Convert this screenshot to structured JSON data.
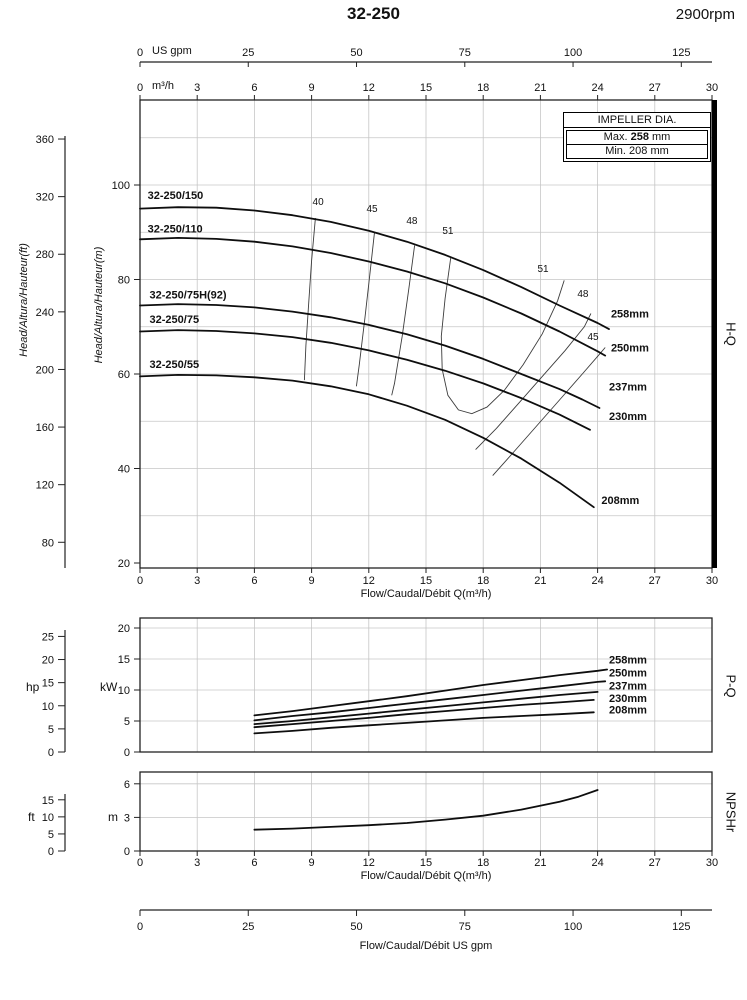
{
  "title": "32-250",
  "rpm": "2900rpm",
  "impeller_box": {
    "header": "IMPELLER DIA.",
    "max_label": "Max.",
    "max_value": "258",
    "max_unit": "mm",
    "min_label": "Min.",
    "min_value": "208",
    "min_unit": "mm"
  },
  "section_labels": {
    "hq": "H-Q",
    "pq": "P-Q",
    "npshr": "NPSHr"
  },
  "axis_titles": {
    "head_ft": "Head/Altura/Hauteur(ft)",
    "head_m": "Head/Altura/Hauteur(m)",
    "flow_m3h": "Flow/Caudal/Débit Q(m³/h)",
    "flow_usgpm": "Flow/Caudal/Débit  US gpm",
    "us_gpm_unit": "US gpm",
    "m3h_unit": "m³/h",
    "kw_unit": "kW",
    "hp_unit": "hp",
    "m_unit": "m",
    "ft_unit": "ft"
  },
  "chart_data": [
    {
      "id": "hq",
      "type": "line",
      "title": "H-Q",
      "xlabel": "Flow/Caudal/Débit Q(m³/h)",
      "ylabel": "Head/Altura/Hauteur(m)",
      "xlim_m3h": [
        0,
        30
      ],
      "ylim_m": [
        20,
        100
      ],
      "x_ticks_m3h": [
        0,
        3,
        6,
        9,
        12,
        15,
        18,
        21,
        24,
        27,
        30
      ],
      "x_ticks_usgpm": [
        0,
        25,
        50,
        75,
        100,
        125
      ],
      "y_ticks_m": [
        20,
        40,
        60,
        80,
        100
      ],
      "y_ticks_ft": [
        80,
        120,
        160,
        200,
        240,
        280,
        320,
        360
      ],
      "series": [
        {
          "name": "32-250/150",
          "diameter": "258mm",
          "name_label_at": [
            0.4,
            97
          ],
          "dia_label_at": [
            24.7,
            72
          ],
          "points": [
            [
              0,
              95
            ],
            [
              2,
              95.3
            ],
            [
              4,
              95.2
            ],
            [
              6,
              94.6
            ],
            [
              8,
              93.6
            ],
            [
              10,
              92.2
            ],
            [
              12,
              90.3
            ],
            [
              14,
              88
            ],
            [
              16,
              85.2
            ],
            [
              18,
              82
            ],
            [
              20,
              78.4
            ],
            [
              22,
              74.5
            ],
            [
              24,
              70.8
            ],
            [
              24.6,
              69.5
            ]
          ]
        },
        {
          "name": "32-250/110",
          "diameter": "250mm",
          "name_label_at": [
            0.4,
            90
          ],
          "dia_label_at": [
            24.7,
            64.8
          ],
          "points": [
            [
              0,
              88.5
            ],
            [
              2,
              88.8
            ],
            [
              4,
              88.6
            ],
            [
              6,
              88
            ],
            [
              8,
              87
            ],
            [
              10,
              85.6
            ],
            [
              12,
              83.8
            ],
            [
              14,
              81.7
            ],
            [
              16,
              79.2
            ],
            [
              18,
              76.2
            ],
            [
              20,
              72.8
            ],
            [
              22,
              69
            ],
            [
              24,
              64.8
            ],
            [
              24.4,
              63.9
            ]
          ]
        },
        {
          "name": "32-250/75H(92)",
          "diameter": "237mm",
          "name_label_at": [
            0.5,
            76
          ],
          "dia_label_at": [
            24.6,
            56.5
          ],
          "points": [
            [
              0,
              74.5
            ],
            [
              2,
              74.8
            ],
            [
              4,
              74.6
            ],
            [
              6,
              74.1
            ],
            [
              8,
              73.2
            ],
            [
              10,
              72
            ],
            [
              12,
              70.4
            ],
            [
              14,
              68.4
            ],
            [
              16,
              66
            ],
            [
              18,
              63.2
            ],
            [
              20,
              60
            ],
            [
              22,
              56.8
            ],
            [
              23.2,
              54.6
            ],
            [
              24.1,
              52.8
            ]
          ]
        },
        {
          "name": "32-250/75",
          "diameter": "230mm",
          "name_label_at": [
            0.5,
            70.8
          ],
          "dia_label_at": [
            24.6,
            50.3
          ],
          "points": [
            [
              0,
              69
            ],
            [
              2,
              69.3
            ],
            [
              4,
              69.1
            ],
            [
              6,
              68.6
            ],
            [
              8,
              67.8
            ],
            [
              10,
              66.6
            ],
            [
              12,
              65
            ],
            [
              14,
              63
            ],
            [
              16,
              60.7
            ],
            [
              18,
              58
            ],
            [
              20,
              54.9
            ],
            [
              22,
              51.4
            ],
            [
              23.6,
              48.2
            ]
          ]
        },
        {
          "name": "32-250/55",
          "diameter": "208mm",
          "name_label_at": [
            0.5,
            61.3
          ],
          "dia_label_at": [
            24.2,
            32.5
          ],
          "points": [
            [
              0,
              59.5
            ],
            [
              2,
              59.8
            ],
            [
              4,
              59.7
            ],
            [
              6,
              59.3
            ],
            [
              8,
              58.6
            ],
            [
              10,
              57.4
            ],
            [
              12,
              55.7
            ],
            [
              14,
              53.3
            ],
            [
              16,
              50.3
            ],
            [
              18,
              46.5
            ],
            [
              20,
              42.1
            ],
            [
              22,
              37
            ],
            [
              23.8,
              31.8
            ]
          ]
        }
      ],
      "efficiency_lines": [
        {
          "label": "40",
          "label_at": [
            9.34,
            95.8
          ],
          "points": [
            [
              9.2,
              93
            ],
            [
              9.0,
              84
            ],
            [
              8.85,
              75
            ],
            [
              8.7,
              66
            ],
            [
              8.62,
              58.7
            ]
          ]
        },
        {
          "label": "45",
          "label_at": [
            12.17,
            94.3
          ],
          "points": [
            [
              12.3,
              90
            ],
            [
              12.05,
              81
            ],
            [
              11.8,
              72
            ],
            [
              11.5,
              62
            ],
            [
              11.35,
              57.4
            ]
          ]
        },
        {
          "label": "48",
          "label_at": [
            14.26,
            91.7
          ],
          "points": [
            [
              14.4,
              87.2
            ],
            [
              14.1,
              78
            ],
            [
              13.75,
              68
            ],
            [
              13.35,
              58
            ],
            [
              13.2,
              55.5
            ]
          ]
        },
        {
          "label": "51",
          "label_at": [
            16.15,
            89.6
          ],
          "points": [
            [
              16.3,
              84.7
            ],
            [
              16.0,
              76
            ],
            [
              15.8,
              68
            ],
            [
              15.85,
              61
            ],
            [
              16.15,
              55.5
            ],
            [
              16.7,
              52.4
            ],
            [
              17.4,
              51.6
            ],
            [
              18.2,
              53
            ],
            [
              19.1,
              56.5
            ],
            [
              20.1,
              62
            ],
            [
              21.1,
              68.5
            ],
            [
              21.9,
              75.5
            ],
            [
              22.25,
              79.8
            ]
          ]
        },
        {
          "label": "51",
          "label_at": [
            21.14,
            81.6
          ],
          "points": []
        },
        {
          "label": "48",
          "label_at": [
            23.23,
            76.3
          ],
          "points": [
            [
              17.6,
              44
            ],
            [
              18.7,
              48.5
            ],
            [
              19.9,
              54
            ],
            [
              21.1,
              59.5
            ],
            [
              22.3,
              65
            ],
            [
              23.3,
              70
            ],
            [
              23.65,
              72.8
            ]
          ]
        },
        {
          "label": "45",
          "label_at": [
            23.76,
            67.2
          ],
          "points": [
            [
              18.5,
              38.5
            ],
            [
              19.6,
              43.5
            ],
            [
              20.8,
              49
            ],
            [
              22.0,
              54.5
            ],
            [
              23.2,
              60
            ],
            [
              24.1,
              64.2
            ],
            [
              24.4,
              65.6
            ]
          ]
        }
      ]
    },
    {
      "id": "pq",
      "type": "line",
      "title": "P-Q",
      "ylabel": "kW",
      "ylim_kw": [
        0,
        20
      ],
      "y_ticks_kw": [
        0,
        5,
        10,
        15,
        20
      ],
      "y_ticks_hp": [
        0,
        5,
        10,
        15,
        20,
        25
      ],
      "series": [
        {
          "diameter": "258mm",
          "dia_label_at": [
            24.6,
            14.3
          ],
          "points": [
            [
              6,
              5.9
            ],
            [
              8,
              6.6
            ],
            [
              10,
              7.4
            ],
            [
              12,
              8.2
            ],
            [
              14,
              9.0
            ],
            [
              16,
              9.9
            ],
            [
              18,
              10.8
            ],
            [
              20,
              11.6
            ],
            [
              22,
              12.4
            ],
            [
              24,
              13.1
            ],
            [
              24.5,
              13.3
            ]
          ]
        },
        {
          "diameter": "250mm",
          "dia_label_at": [
            24.6,
            12.2
          ],
          "points": [
            [
              6,
              5.1
            ],
            [
              8,
              5.8
            ],
            [
              10,
              6.4
            ],
            [
              12,
              7.1
            ],
            [
              14,
              7.8
            ],
            [
              16,
              8.5
            ],
            [
              18,
              9.2
            ],
            [
              20,
              9.9
            ],
            [
              22,
              10.6
            ],
            [
              24,
              11.3
            ],
            [
              24.4,
              11.4
            ]
          ]
        },
        {
          "diameter": "237mm",
          "dia_label_at": [
            24.6,
            10.1
          ],
          "points": [
            [
              6,
              4.5
            ],
            [
              8,
              5.0
            ],
            [
              10,
              5.6
            ],
            [
              12,
              6.2
            ],
            [
              14,
              6.8
            ],
            [
              16,
              7.4
            ],
            [
              18,
              8.0
            ],
            [
              20,
              8.6
            ],
            [
              22,
              9.2
            ],
            [
              24,
              9.7
            ]
          ]
        },
        {
          "diameter": "230mm",
          "dia_label_at": [
            24.6,
            8.1
          ],
          "points": [
            [
              6,
              4.0
            ],
            [
              8,
              4.5
            ],
            [
              10,
              5.0
            ],
            [
              12,
              5.5
            ],
            [
              14,
              6.1
            ],
            [
              16,
              6.6
            ],
            [
              18,
              7.1
            ],
            [
              20,
              7.6
            ],
            [
              22,
              8.0
            ],
            [
              23.8,
              8.4
            ]
          ]
        },
        {
          "diameter": "208mm",
          "dia_label_at": [
            24.6,
            6.2
          ],
          "points": [
            [
              6,
              3.0
            ],
            [
              8,
              3.4
            ],
            [
              10,
              3.9
            ],
            [
              12,
              4.3
            ],
            [
              14,
              4.7
            ],
            [
              16,
              5.1
            ],
            [
              18,
              5.5
            ],
            [
              20,
              5.8
            ],
            [
              22,
              6.1
            ],
            [
              23.8,
              6.4
            ]
          ]
        }
      ]
    },
    {
      "id": "npshr",
      "type": "line",
      "title": "NPSHr",
      "xlabel": "Flow/Caudal/Débit Q(m³/h)",
      "ylabel": "m",
      "ylim_m": [
        0,
        6
      ],
      "y_ticks_m": [
        0,
        3,
        6
      ],
      "y_ticks_ft": [
        0,
        5,
        10,
        15
      ],
      "series": [
        {
          "name": "NPSHr",
          "points": [
            [
              6,
              1.9
            ],
            [
              8,
              2.0
            ],
            [
              10,
              2.15
            ],
            [
              12,
              2.3
            ],
            [
              14,
              2.5
            ],
            [
              16,
              2.8
            ],
            [
              18,
              3.15
            ],
            [
              20,
              3.7
            ],
            [
              22,
              4.4
            ],
            [
              23,
              4.85
            ],
            [
              24,
              5.45
            ]
          ]
        }
      ]
    }
  ]
}
